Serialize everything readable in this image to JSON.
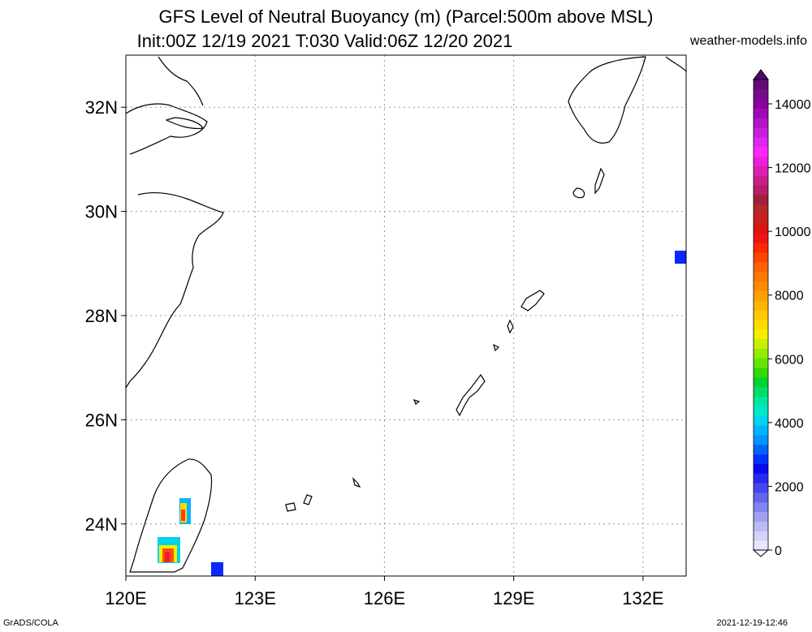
{
  "title": {
    "line1": "GFS Level of Neutral Buoyancy (m) (Parcel:500m above MSL)",
    "line2": "Init:00Z 12/19 2021 T:030 Valid:06Z 12/20 2021",
    "site": "weather-models.info"
  },
  "footer": {
    "left": "GrADS/COLA",
    "right": "2021-12-19-12:46"
  },
  "map": {
    "lon_range": [
      120,
      133
    ],
    "lat_range": [
      23,
      33
    ],
    "lon_ticks": [
      {
        "value": 120,
        "label": "120E"
      },
      {
        "value": 123,
        "label": "123E"
      },
      {
        "value": 126,
        "label": "126E"
      },
      {
        "value": 129,
        "label": "129E"
      },
      {
        "value": 132,
        "label": "132E"
      }
    ],
    "lat_ticks": [
      {
        "value": 24,
        "label": "24N"
      },
      {
        "value": 26,
        "label": "26N"
      },
      {
        "value": 28,
        "label": "28N"
      },
      {
        "value": 30,
        "label": "30N"
      },
      {
        "value": 32,
        "label": "32N"
      }
    ],
    "grid": "dotted"
  },
  "colorbar": {
    "labels": [
      "0",
      "2000",
      "4000",
      "6000",
      "8000",
      "10000",
      "12000",
      "14000"
    ],
    "colors": [
      "#e6e6ff",
      "#d2d2fa",
      "#b9b9f5",
      "#a0a0f0",
      "#8282f0",
      "#6464f0",
      "#4646f0",
      "#2828f0",
      "#0a0af0",
      "#0032ff",
      "#0064ff",
      "#0096ff",
      "#00b4ff",
      "#00d2f0",
      "#00e6c8",
      "#00e6a0",
      "#00dc64",
      "#00d232",
      "#32dc00",
      "#64e600",
      "#96eb00",
      "#c8f000",
      "#f0f000",
      "#ffdc00",
      "#ffc800",
      "#ffb400",
      "#ffa000",
      "#ff8c00",
      "#ff7800",
      "#ff6400",
      "#ff4600",
      "#ff2800",
      "#f01414",
      "#dc1414",
      "#c81e1e",
      "#b42828",
      "#a01e3c",
      "#b41e64",
      "#c81e8c",
      "#dc1eb4",
      "#f01edc",
      "#ff28ff",
      "#dc28f0",
      "#c81edc",
      "#b414c8",
      "#a00ab4",
      "#8c00a0",
      "#780a8c",
      "#640a78"
    ]
  },
  "features": [
    {
      "name": "blue-cell-east",
      "lon": 132.9,
      "lat": 29.1,
      "value": 1500
    },
    {
      "name": "blue-cell-south",
      "lon": 122.1,
      "lat": 23.15,
      "value": 1500
    },
    {
      "name": "taiwan-cell-north",
      "lon": 121.3,
      "lat": 24.2,
      "value": 7000
    },
    {
      "name": "taiwan-cell-south",
      "lon": 121.0,
      "lat": 23.45,
      "value": 8000
    }
  ]
}
